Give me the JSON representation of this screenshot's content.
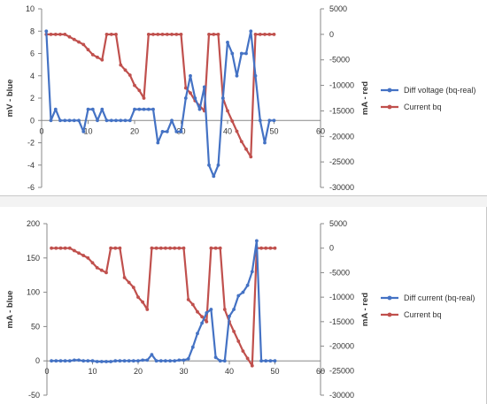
{
  "colors": {
    "blue": "#4472C4",
    "red": "#C0504D",
    "axis": "#888888"
  },
  "chart_data": [
    {
      "type": "line",
      "x": [
        1,
        2,
        3,
        4,
        5,
        6,
        7,
        8,
        9,
        10,
        11,
        12,
        13,
        14,
        15,
        16,
        17,
        18,
        19,
        20,
        21,
        22,
        23,
        24,
        25,
        26,
        27,
        28,
        29,
        30,
        31,
        32,
        33,
        34,
        35,
        36,
        37,
        38,
        39,
        40,
        41,
        42,
        43,
        44,
        45,
        46,
        47,
        48,
        49,
        50
      ],
      "xlim": [
        0,
        60
      ],
      "xticks": [
        "0",
        "10",
        "20",
        "30",
        "40",
        "50",
        "60"
      ],
      "ylabel": "mV - blue",
      "ylim": [
        -6,
        10
      ],
      "yticks": [
        "-6",
        "-4",
        "-2",
        "0",
        "2",
        "4",
        "6",
        "8",
        "10"
      ],
      "y2label": "mA - red",
      "y2lim": [
        -30000,
        5000
      ],
      "y2ticks": [
        "-30000",
        "-25000",
        "-20000",
        "-15000",
        "-10000",
        "-5000",
        "0",
        "5000"
      ],
      "series": [
        {
          "name": "Diff voltage (bq-real)",
          "axis": "left",
          "color": "#4472C4",
          "values": [
            8,
            0,
            1,
            0,
            0,
            0,
            0,
            0,
            -1,
            1,
            1,
            0,
            1,
            0,
            0,
            0,
            0,
            0,
            0,
            1,
            1,
            1,
            1,
            1,
            -2,
            -1,
            -1,
            0,
            -1,
            -1,
            2,
            4,
            2,
            1,
            3,
            -4,
            -5,
            -4,
            2,
            7,
            6,
            4,
            6,
            6,
            8,
            4,
            0,
            -2,
            0,
            0
          ]
        },
        {
          "name": "Current bq",
          "axis": "right",
          "color": "#C0504D",
          "values": [
            0,
            0,
            0,
            0,
            0,
            -500,
            -1000,
            -1500,
            -2000,
            -3000,
            -4000,
            -4500,
            -5000,
            0,
            0,
            0,
            -6000,
            -7000,
            -8000,
            -10000,
            -11000,
            -12500,
            0,
            0,
            0,
            0,
            0,
            0,
            0,
            0,
            -10500,
            -11500,
            -13000,
            -14000,
            -15000,
            0,
            0,
            0,
            -12500,
            -15000,
            -17000,
            -19000,
            -21000,
            -22500,
            -24000,
            0,
            0,
            0,
            0,
            0
          ]
        }
      ]
    },
    {
      "type": "line",
      "x": [
        1,
        2,
        3,
        4,
        5,
        6,
        7,
        8,
        9,
        10,
        11,
        12,
        13,
        14,
        15,
        16,
        17,
        18,
        19,
        20,
        21,
        22,
        23,
        24,
        25,
        26,
        27,
        28,
        29,
        30,
        31,
        32,
        33,
        34,
        35,
        36,
        37,
        38,
        39,
        40,
        41,
        42,
        43,
        44,
        45,
        46,
        47,
        48,
        49,
        50
      ],
      "xlim": [
        0,
        60
      ],
      "xticks": [
        "0",
        "10",
        "20",
        "30",
        "40",
        "50",
        "60"
      ],
      "ylabel": "mA - blue",
      "ylim": [
        -50,
        200
      ],
      "yticks": [
        "-50",
        "0",
        "50",
        "100",
        "150",
        "200"
      ],
      "y2label": "mA - red",
      "y2lim": [
        -30000,
        5000
      ],
      "y2ticks": [
        "-30000",
        "-25000",
        "-20000",
        "-15000",
        "-10000",
        "-5000",
        "0",
        "5000"
      ],
      "series": [
        {
          "name": "Diff current (bq-real)",
          "axis": "left",
          "color": "#4472C4",
          "values": [
            0,
            0,
            0,
            0,
            0,
            1,
            1,
            0,
            0,
            0,
            -1,
            -1,
            -1,
            -1,
            0,
            0,
            0,
            0,
            0,
            0,
            1,
            1,
            9,
            0,
            0,
            0,
            0,
            0,
            1,
            1,
            3,
            20,
            40,
            55,
            70,
            75,
            5,
            0,
            0,
            65,
            75,
            95,
            100,
            110,
            130,
            175,
            0,
            0,
            0,
            0
          ]
        },
        {
          "name": "Current bq",
          "axis": "right",
          "color": "#C0504D",
          "values": [
            0,
            0,
            0,
            0,
            0,
            -500,
            -1000,
            -1500,
            -2000,
            -3000,
            -4000,
            -4500,
            -5000,
            0,
            0,
            0,
            -6000,
            -7000,
            -8000,
            -10000,
            -11000,
            -12500,
            0,
            0,
            0,
            0,
            0,
            0,
            0,
            0,
            -10500,
            -11500,
            -13000,
            -14000,
            -15000,
            0,
            0,
            0,
            -12500,
            -15000,
            -17000,
            -19000,
            -21000,
            -22500,
            -24000,
            0,
            0,
            0,
            0,
            0
          ]
        }
      ]
    }
  ]
}
